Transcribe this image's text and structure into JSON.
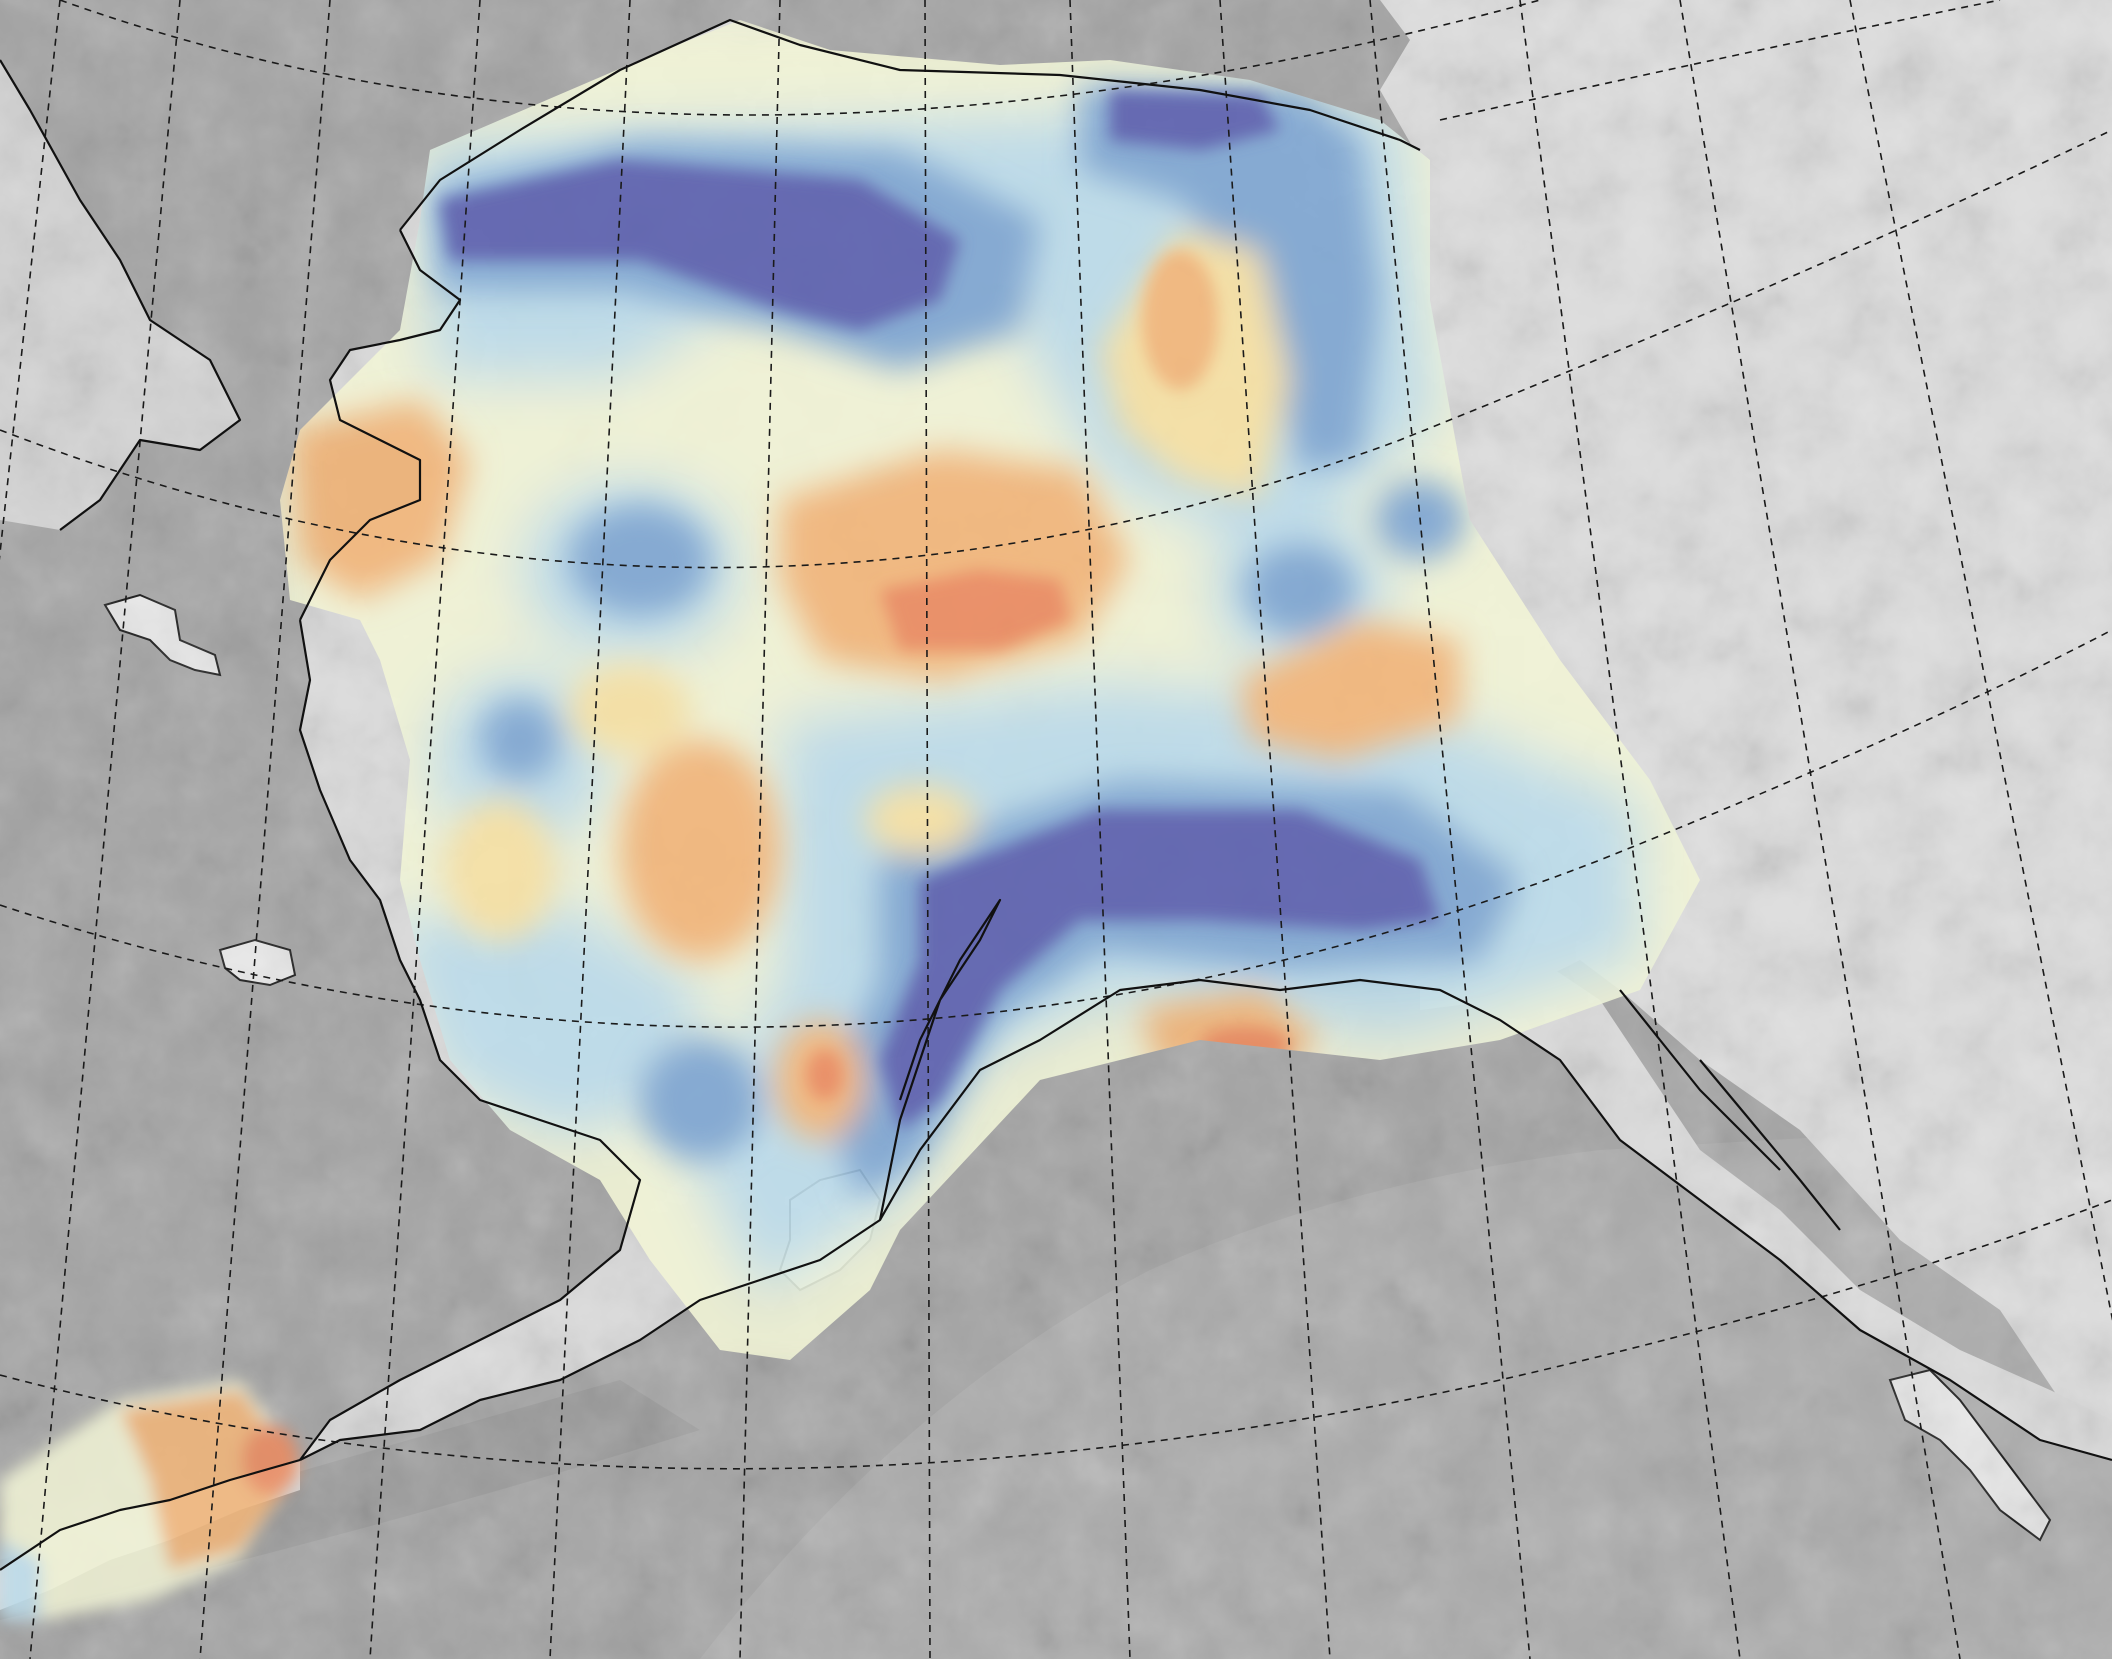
{
  "map": {
    "type": "contour-anomaly-map",
    "region": "Alaska",
    "has_text_labels": false,
    "colors": {
      "ocean": "#a3a3a3",
      "land_relief": "#dcdcdc",
      "coastline": "#111111",
      "graticule": "#1a1a1a",
      "anomaly_strong_negative": "#5a5fae",
      "anomaly_negative": "#7ea6d2",
      "anomaly_weak_negative": "#bcdcea",
      "anomaly_neutral": "#f2f4d6",
      "anomaly_weak_positive": "#f7e1a3",
      "anomaly_positive": "#f3b679",
      "anomaly_strong_positive": "#ec8a5e"
    },
    "features": [
      "shaded-relief-basemap",
      "graticule",
      "coastline",
      "filled-contour-overlay"
    ]
  }
}
